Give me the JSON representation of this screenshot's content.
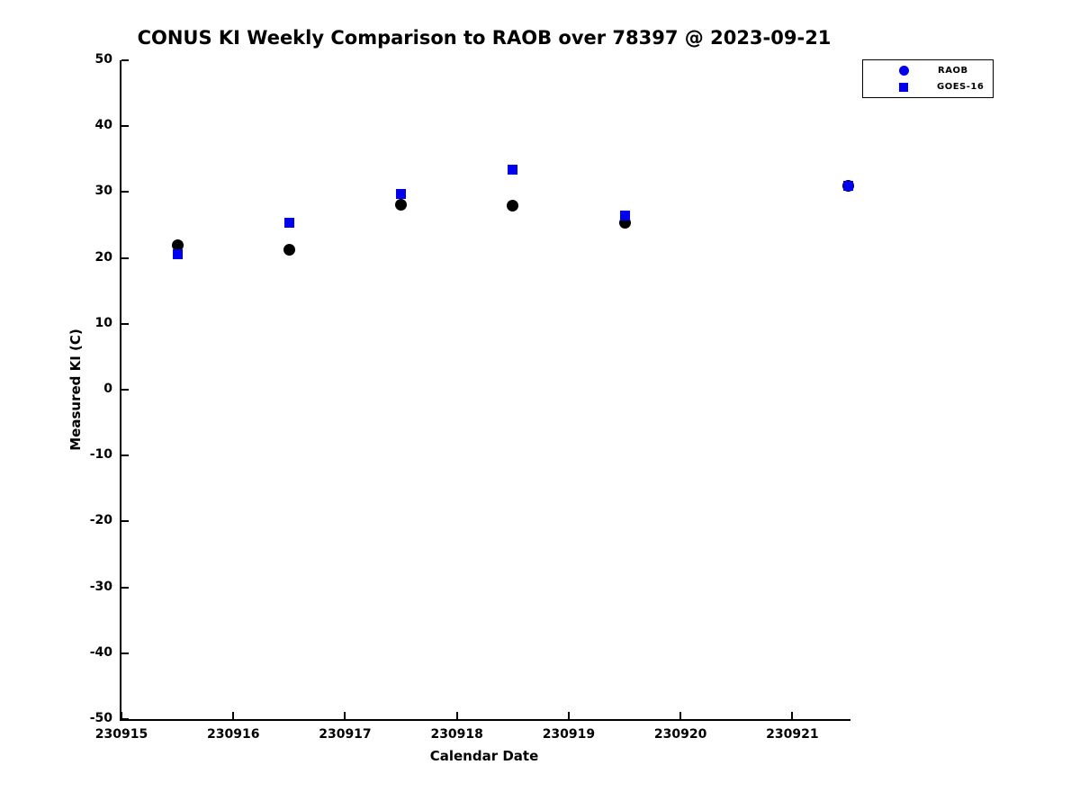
{
  "figure": {
    "background_color": "#FFFFFF",
    "axis_color": "#000000"
  },
  "chart_data": {
    "type": "scatter",
    "title": "CONUS KI Weekly Comparison to RAOB over 78397 @ 2023-09-21",
    "xlabel": "Calendar Date",
    "ylabel": "Measured KI (C)",
    "xlim": [
      230915,
      230921.52
    ],
    "ylim": [
      -50,
      50
    ],
    "xticks": [
      230915,
      230916,
      230917,
      230918,
      230919,
      230920,
      230921
    ],
    "yticks": [
      -50,
      -40,
      -30,
      -20,
      -10,
      0,
      10,
      20,
      30,
      40,
      50
    ],
    "grid": false,
    "legend_position": "outside-top-right",
    "x": [
      230915.5,
      230916.5,
      230917.5,
      230918.5,
      230919.5,
      230921.5
    ],
    "series": [
      {
        "name": "RAOB",
        "marker": "circle",
        "plot_color": "#000000",
        "legend_color": "#0000EE",
        "marker_size": 13,
        "values": [
          21.9,
          21.2,
          28.1,
          28.0,
          25.4,
          31.0
        ]
      },
      {
        "name": "GOES-16",
        "marker": "square",
        "plot_color": "#0000EE",
        "legend_color": "#0000EE",
        "marker_size": 11,
        "values": [
          20.6,
          25.3,
          29.7,
          33.4,
          26.5,
          31.0
        ]
      }
    ]
  }
}
